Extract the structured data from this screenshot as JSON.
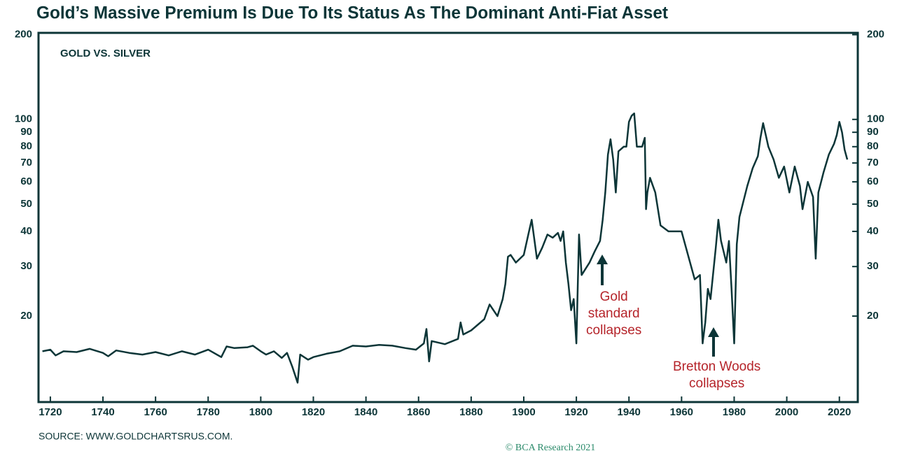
{
  "chart_data": {
    "type": "line",
    "title": "Gold’s Massive Premium Is Due To Its Status As The Dominant Anti-Fiat Asset",
    "subtitle": "GOLD VS. SILVER",
    "source": "SOURCE: WWW.GOLDCHARTSRUS.COM.",
    "copyright": "© BCA Research 2021",
    "log_scale": true,
    "xlim": [
      1715.5,
      2027
    ],
    "xticks": [
      1720,
      1740,
      1760,
      1780,
      1800,
      1820,
      1840,
      1860,
      1880,
      1900,
      1920,
      1940,
      1960,
      1980,
      2000,
      2020
    ],
    "ylim": [
      9.9,
      203
    ],
    "yticks": [
      20,
      30,
      40,
      50,
      60,
      70,
      80,
      90,
      100,
      200
    ],
    "annotations": [
      {
        "lines": [
          "Gold",
          "standard",
          "collapses"
        ],
        "x": 1930,
        "color": "#b5242a"
      },
      {
        "lines": [
          "Bretton Woods",
          "collapses"
        ],
        "x": 1971,
        "color": "#b5242a"
      }
    ],
    "series": [
      {
        "name": "GOLD VS. SILVER",
        "color": "#0c3537",
        "x": [
          1717,
          1720,
          1722,
          1725,
          1730,
          1735,
          1740,
          1742,
          1745,
          1750,
          1755,
          1760,
          1765,
          1770,
          1775,
          1780,
          1785,
          1787,
          1790,
          1795,
          1797,
          1800,
          1802,
          1805,
          1808,
          1810,
          1812,
          1814,
          1815,
          1818,
          1820,
          1825,
          1830,
          1835,
          1840,
          1845,
          1850,
          1855,
          1859,
          1862,
          1863,
          1864,
          1865,
          1870,
          1875,
          1876,
          1877,
          1880,
          1885,
          1887,
          1890,
          1892,
          1893,
          1894,
          1895,
          1897,
          1900,
          1902,
          1903,
          1905,
          1907,
          1909,
          1911,
          1913,
          1914,
          1915,
          1916,
          1917,
          1918,
          1919,
          1920,
          1921,
          1922,
          1925,
          1927,
          1929,
          1930,
          1931,
          1932,
          1933,
          1934,
          1935,
          1936,
          1938,
          1939,
          1940,
          1941,
          1942,
          1943,
          1945,
          1946,
          1946.5,
          1947,
          1948,
          1950,
          1952,
          1955,
          1960,
          1965,
          1967,
          1968,
          1969,
          1970,
          1971,
          1973,
          1974,
          1975,
          1977,
          1978,
          1979,
          1980,
          1981,
          1982,
          1985,
          1987,
          1989,
          1990,
          1991,
          1993,
          1995,
          1997,
          1999,
          2001,
          2003,
          2005,
          2006,
          2008,
          2010,
          2011,
          2012,
          2014,
          2016,
          2018,
          2019,
          2020,
          2021,
          2022,
          2023
        ],
        "values": [
          15.0,
          15.2,
          14.5,
          15.0,
          14.9,
          15.3,
          14.8,
          14.4,
          15.1,
          14.8,
          14.6,
          14.9,
          14.5,
          15.0,
          14.6,
          15.2,
          14.3,
          15.6,
          15.4,
          15.5,
          15.7,
          15.0,
          14.6,
          15.0,
          14.2,
          14.8,
          13.2,
          11.6,
          14.6,
          14.0,
          14.3,
          14.7,
          15.0,
          15.7,
          15.6,
          15.8,
          15.7,
          15.4,
          15.2,
          16.0,
          18.0,
          13.8,
          16.3,
          15.9,
          16.6,
          19.0,
          17.2,
          17.8,
          19.5,
          22.0,
          20.0,
          23.0,
          26.0,
          32.5,
          33.0,
          31.0,
          33.0,
          40.0,
          44.0,
          32.0,
          35.0,
          39.0,
          38.0,
          39.5,
          37.0,
          40.0,
          31.0,
          26.0,
          21.0,
          23.0,
          16.0,
          39.0,
          28.0,
          31.0,
          34.0,
          37.0,
          44.0,
          55.0,
          75.0,
          85.0,
          72.0,
          55.0,
          77.0,
          80.0,
          80.0,
          98.0,
          103.0,
          105.0,
          80.0,
          80.0,
          86.0,
          48.0,
          55.0,
          62.0,
          55.0,
          42.0,
          40.0,
          40.0,
          27.0,
          28.0,
          16.0,
          19.0,
          25.0,
          23.0,
          35.0,
          44.0,
          37.0,
          31.0,
          37.0,
          25.0,
          16.0,
          36.0,
          45.0,
          58.0,
          67.0,
          74.0,
          86.0,
          97.0,
          80.0,
          72.0,
          62.0,
          68.0,
          55.0,
          68.0,
          58.0,
          48.0,
          60.0,
          53.0,
          32.0,
          55.0,
          65.0,
          75.0,
          82.0,
          88.0,
          98.0,
          90.0,
          78.0,
          72.0
        ]
      }
    ]
  }
}
